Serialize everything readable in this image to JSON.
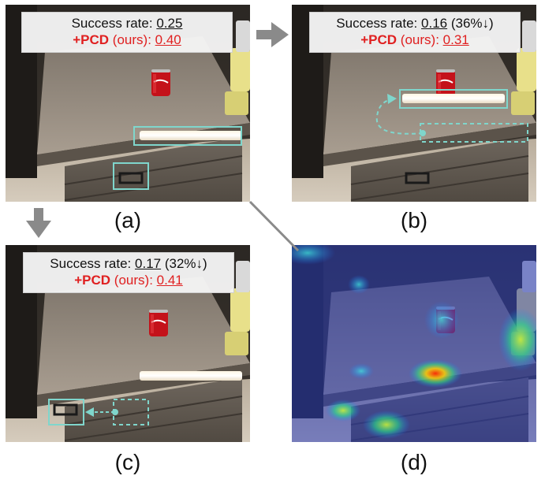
{
  "panels": {
    "a": {
      "caption": "(a)",
      "success_label": "Success rate: ",
      "success_value": "0.25",
      "success_delta": "",
      "pcd_bold": "+PCD",
      "pcd_rest": " (ours): ",
      "pcd_value": "0.40"
    },
    "b": {
      "caption": "(b)",
      "success_label": "Success rate: ",
      "success_value": "0.16",
      "success_delta": " (36%↓)",
      "pcd_bold": "+PCD",
      "pcd_rest": " (ours): ",
      "pcd_value": "0.31"
    },
    "c": {
      "caption": "(c)",
      "success_label": "Success rate: ",
      "success_value": "0.17",
      "success_delta": " (32%↓)",
      "pcd_bold": "+PCD",
      "pcd_rest": " (ours): ",
      "pcd_value": "0.41"
    },
    "d": {
      "caption": "(d)"
    }
  },
  "colors": {
    "highlight_box": "#7fd6cc",
    "accent_red": "#e02020",
    "arrow_gray": "#8a8a8a"
  }
}
